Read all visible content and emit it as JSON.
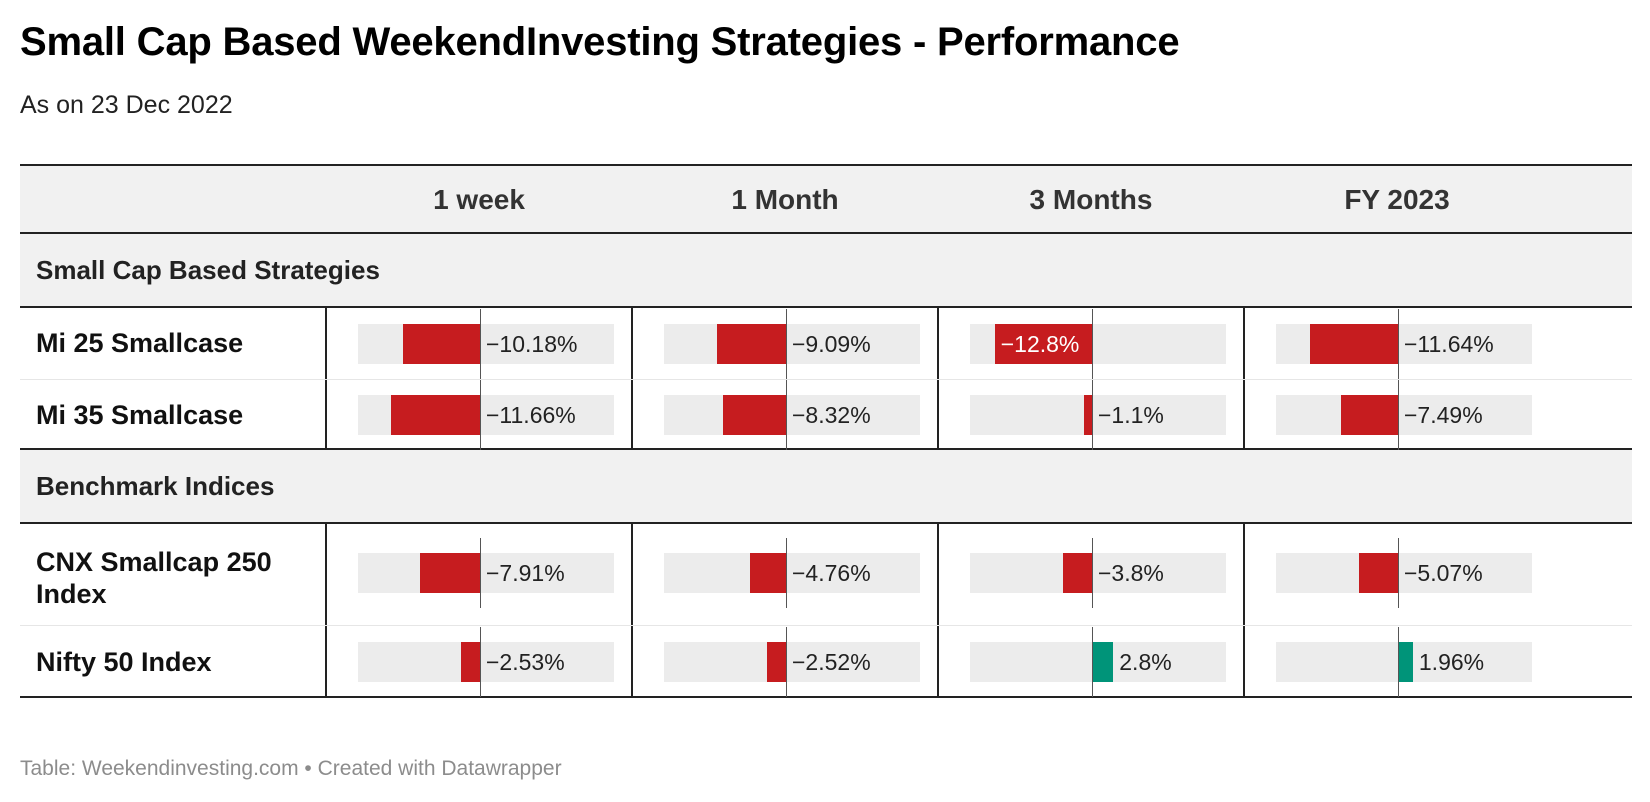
{
  "title": "Small Cap Based WeekendInvesting Strategies - Performance",
  "subtitle": "As on 23 Dec 2022",
  "footer": "Table: Weekendinvesting.com • Created with Datawrapper",
  "colors": {
    "negative": "#c61c1f",
    "positive": "#009479",
    "track": "#ececec"
  },
  "chart_data": {
    "type": "table",
    "columns": [
      "1 week",
      "1 Month",
      "3 Months",
      "FY 2023"
    ],
    "groups": [
      {
        "name": "Small Cap Based Strategies",
        "rows": [
          {
            "name": "Mi 25 Smallcase",
            "values": [
              -10.18,
              -9.09,
              -12.8,
              -11.64
            ],
            "labels": [
              "−10.18%",
              "−9.09%",
              "−12.8%",
              "−11.64%"
            ]
          },
          {
            "name": "Mi 35 Smallcase",
            "values": [
              -11.66,
              -8.32,
              -1.1,
              -7.49
            ],
            "labels": [
              "−11.66%",
              "−8.32%",
              "−1.1%",
              "−7.49%"
            ]
          }
        ]
      },
      {
        "name": "Benchmark Indices",
        "rows": [
          {
            "name": "CNX Smallcap 250 Index",
            "values": [
              -7.91,
              -4.76,
              -3.8,
              -5.07
            ],
            "labels": [
              "−7.91%",
              "−4.76%",
              "−3.8%",
              "−5.07%"
            ]
          },
          {
            "name": "Nifty 50 Index",
            "values": [
              -2.53,
              -2.52,
              2.8,
              1.96
            ],
            "labels": [
              "−2.53%",
              "−2.52%",
              "2.8%",
              "1.96%"
            ]
          }
        ]
      }
    ]
  }
}
